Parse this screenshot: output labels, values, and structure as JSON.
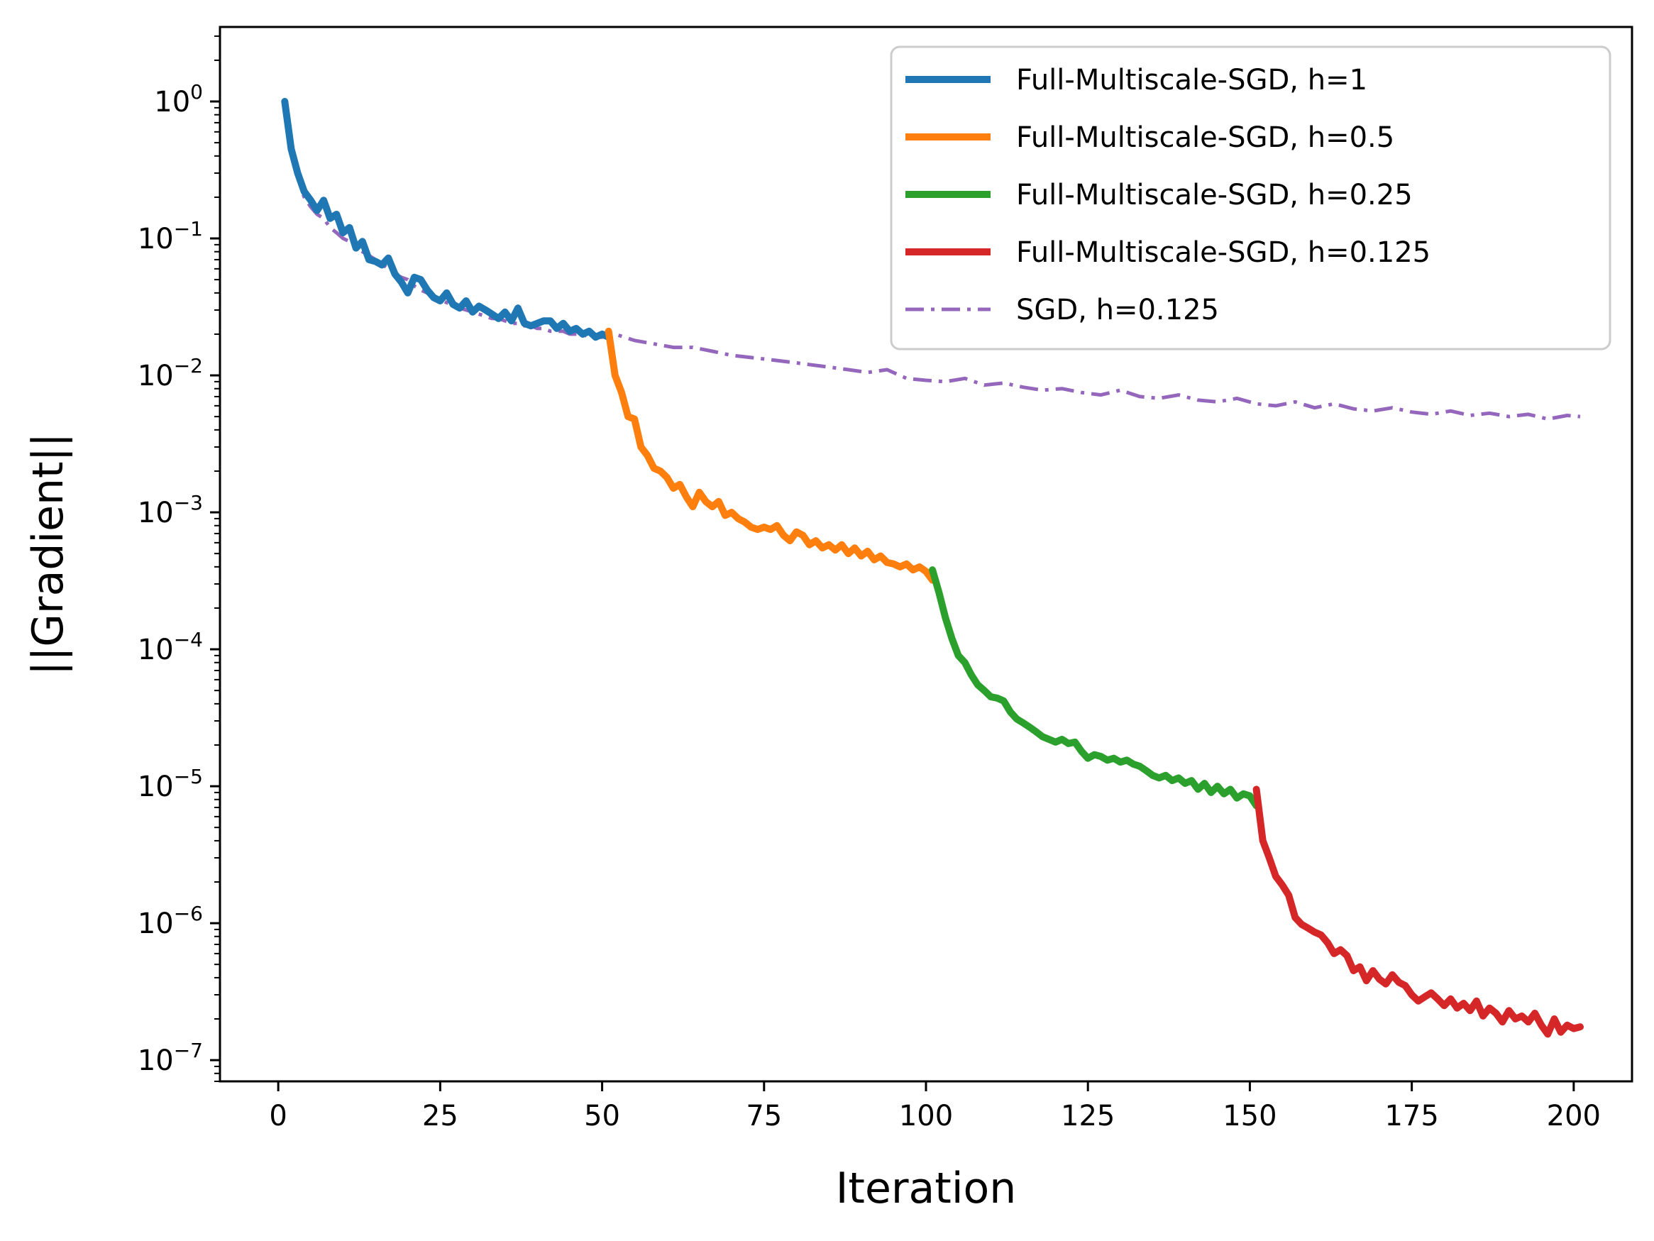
{
  "chart_data": {
    "type": "line",
    "title": "",
    "xlabel": "Iteration",
    "ylabel": "||Gradient||",
    "yscale": "log",
    "xlim": [
      -9,
      209
    ],
    "ylim": [
      7e-08,
      3.5
    ],
    "grid": false,
    "legend_position": "top-right",
    "x_ticks": [
      0,
      25,
      50,
      75,
      100,
      125,
      150,
      175,
      200
    ],
    "x_tick_labels": [
      "0",
      "25",
      "50",
      "75",
      "100",
      "125",
      "150",
      "175",
      "200"
    ],
    "y_ticks": [
      {
        "value": 1,
        "base": "10",
        "exp": "0"
      },
      {
        "value": 0.1,
        "base": "10",
        "exp": "−1"
      },
      {
        "value": 0.01,
        "base": "10",
        "exp": "−2"
      },
      {
        "value": 0.001,
        "base": "10",
        "exp": "−3"
      },
      {
        "value": 0.0001,
        "base": "10",
        "exp": "−4"
      },
      {
        "value": 1e-05,
        "base": "10",
        "exp": "−5"
      },
      {
        "value": 1e-06,
        "base": "10",
        "exp": "−6"
      },
      {
        "value": 1e-07,
        "base": "10",
        "exp": "−7"
      }
    ],
    "series": [
      {
        "name": "Full-Multiscale-SGD, h=1",
        "color": "#1f77b4",
        "style": "solid",
        "x": [
          1,
          2,
          3,
          4,
          5,
          6,
          7,
          8,
          9,
          10,
          11,
          12,
          13,
          14,
          15,
          16,
          17,
          18,
          19,
          20,
          21,
          22,
          23,
          24,
          25,
          26,
          27,
          28,
          29,
          30,
          31,
          32,
          33,
          34,
          35,
          36,
          37,
          38,
          39,
          40,
          41,
          42,
          43,
          44,
          45,
          46,
          47,
          48,
          49,
          50,
          51
        ],
        "y": [
          1.0,
          0.45,
          0.3,
          0.22,
          0.19,
          0.16,
          0.19,
          0.14,
          0.15,
          0.11,
          0.12,
          0.085,
          0.095,
          0.07,
          0.068,
          0.064,
          0.072,
          0.055,
          0.048,
          0.04,
          0.052,
          0.05,
          0.042,
          0.037,
          0.035,
          0.04,
          0.033,
          0.031,
          0.035,
          0.029,
          0.032,
          0.03,
          0.028,
          0.026,
          0.029,
          0.025,
          0.031,
          0.024,
          0.023,
          0.024,
          0.025,
          0.025,
          0.022,
          0.024,
          0.021,
          0.022,
          0.02,
          0.021,
          0.019,
          0.02,
          0.019
        ]
      },
      {
        "name": "Full-Multiscale-SGD, h=0.5",
        "color": "#ff7f0e",
        "style": "solid",
        "x": [
          51,
          52,
          53,
          54,
          55,
          56,
          57,
          58,
          59,
          60,
          61,
          62,
          63,
          64,
          65,
          66,
          67,
          68,
          69,
          70,
          71,
          72,
          73,
          74,
          75,
          76,
          77,
          78,
          79,
          80,
          81,
          82,
          83,
          84,
          85,
          86,
          87,
          88,
          89,
          90,
          91,
          92,
          93,
          94,
          95,
          96,
          97,
          98,
          99,
          100,
          101
        ],
        "y": [
          0.021,
          0.01,
          0.0075,
          0.005,
          0.0048,
          0.003,
          0.0026,
          0.0021,
          0.002,
          0.0018,
          0.0015,
          0.0016,
          0.0013,
          0.0011,
          0.0014,
          0.0012,
          0.0011,
          0.0012,
          0.00095,
          0.001,
          0.0009,
          0.00085,
          0.00078,
          0.00075,
          0.00078,
          0.00075,
          0.0008,
          0.00068,
          0.00062,
          0.00072,
          0.00068,
          0.00058,
          0.00062,
          0.00055,
          0.00058,
          0.00053,
          0.00058,
          0.0005,
          0.00055,
          0.00048,
          0.00052,
          0.00045,
          0.00048,
          0.00043,
          0.00042,
          0.0004,
          0.00042,
          0.00038,
          0.0004,
          0.00037,
          0.00032
        ]
      },
      {
        "name": "Full-Multiscale-SGD, h=0.25",
        "color": "#2ca02c",
        "style": "solid",
        "x": [
          101,
          102,
          103,
          104,
          105,
          106,
          107,
          108,
          109,
          110,
          111,
          112,
          113,
          114,
          115,
          116,
          117,
          118,
          119,
          120,
          121,
          122,
          123,
          124,
          125,
          126,
          127,
          128,
          129,
          130,
          131,
          132,
          133,
          134,
          135,
          136,
          137,
          138,
          139,
          140,
          141,
          142,
          143,
          144,
          145,
          146,
          147,
          148,
          149,
          150,
          151
        ],
        "y": [
          0.00038,
          0.00026,
          0.00017,
          0.00012,
          9e-05,
          8e-05,
          6.5e-05,
          5.5e-05,
          5e-05,
          4.5e-05,
          4.4e-05,
          4.2e-05,
          3.5e-05,
          3.1e-05,
          2.9e-05,
          2.7e-05,
          2.5e-05,
          2.3e-05,
          2.2e-05,
          2.1e-05,
          2.2e-05,
          2.05e-05,
          2.1e-05,
          1.8e-05,
          1.6e-05,
          1.7e-05,
          1.65e-05,
          1.55e-05,
          1.6e-05,
          1.5e-05,
          1.55e-05,
          1.45e-05,
          1.4e-05,
          1.3e-05,
          1.2e-05,
          1.15e-05,
          1.2e-05,
          1.1e-05,
          1.15e-05,
          1.05e-05,
          1.1e-05,
          9.5e-06,
          1.05e-05,
          9e-06,
          1e-05,
          8.8e-06,
          9.5e-06,
          8.2e-06,
          8.8e-06,
          8.5e-06,
          7.2e-06
        ]
      },
      {
        "name": "Full-Multiscale-SGD, h=0.125",
        "color": "#d62728",
        "style": "solid",
        "x": [
          151,
          152,
          153,
          154,
          155,
          156,
          157,
          158,
          159,
          160,
          161,
          162,
          163,
          164,
          165,
          166,
          167,
          168,
          169,
          170,
          171,
          172,
          173,
          174,
          175,
          176,
          177,
          178,
          179,
          180,
          181,
          182,
          183,
          184,
          185,
          186,
          187,
          188,
          189,
          190,
          191,
          192,
          193,
          194,
          195,
          196,
          197,
          198,
          199,
          200,
          201
        ],
        "y": [
          9.5e-06,
          4e-06,
          3e-06,
          2.2e-06,
          1.9e-06,
          1.6e-06,
          1.1e-06,
          9.8e-07,
          9.2e-07,
          8.6e-07,
          8.2e-07,
          7.2e-07,
          6e-07,
          6.4e-07,
          5.8e-07,
          4.5e-07,
          4.8e-07,
          3.8e-07,
          4.5e-07,
          3.9e-07,
          3.6e-07,
          4.2e-07,
          3.7e-07,
          3.5e-07,
          3e-07,
          2.7e-07,
          2.9e-07,
          3.1e-07,
          2.8e-07,
          2.5e-07,
          2.8e-07,
          2.4e-07,
          2.6e-07,
          2.3e-07,
          2.7e-07,
          2.1e-07,
          2.4e-07,
          2.2e-07,
          1.9e-07,
          2.3e-07,
          2e-07,
          2.1e-07,
          1.9e-07,
          2.2e-07,
          1.8e-07,
          1.55e-07,
          2e-07,
          1.6e-07,
          1.8e-07,
          1.7e-07,
          1.75e-07
        ]
      },
      {
        "name": "SGD, h=0.125",
        "color": "#9467bd",
        "style": "dashdot",
        "x": [
          1,
          2,
          3,
          4,
          5,
          6,
          7,
          8,
          9,
          10,
          11,
          12,
          13,
          14,
          15,
          16,
          17,
          18,
          19,
          20,
          21,
          22,
          23,
          24,
          25,
          26,
          27,
          28,
          29,
          30,
          31,
          32,
          33,
          34,
          35,
          36,
          37,
          38,
          39,
          40,
          41,
          42,
          43,
          44,
          45,
          46,
          47,
          48,
          49,
          50,
          52,
          55,
          58,
          61,
          64,
          67,
          70,
          73,
          76,
          79,
          82,
          85,
          88,
          91,
          94,
          97,
          100,
          103,
          106,
          109,
          112,
          115,
          118,
          121,
          124,
          127,
          130,
          133,
          136,
          139,
          142,
          145,
          148,
          151,
          154,
          157,
          160,
          163,
          166,
          169,
          172,
          175,
          178,
          181,
          184,
          187,
          190,
          193,
          196,
          199,
          201
        ],
        "y": [
          1.05,
          0.5,
          0.28,
          0.2,
          0.17,
          0.15,
          0.14,
          0.12,
          0.11,
          0.1,
          0.095,
          0.085,
          0.08,
          0.075,
          0.07,
          0.065,
          0.06,
          0.055,
          0.052,
          0.05,
          0.045,
          0.042,
          0.04,
          0.038,
          0.036,
          0.034,
          0.033,
          0.031,
          0.03,
          0.029,
          0.028,
          0.027,
          0.026,
          0.026,
          0.025,
          0.024,
          0.024,
          0.023,
          0.023,
          0.022,
          0.022,
          0.021,
          0.021,
          0.021,
          0.02,
          0.02,
          0.02,
          0.019,
          0.019,
          0.019,
          0.02,
          0.018,
          0.017,
          0.016,
          0.016,
          0.015,
          0.014,
          0.0135,
          0.013,
          0.0125,
          0.012,
          0.0115,
          0.011,
          0.0105,
          0.011,
          0.0095,
          0.0092,
          0.009,
          0.0095,
          0.0085,
          0.0088,
          0.0082,
          0.0078,
          0.008,
          0.0075,
          0.0072,
          0.0078,
          0.007,
          0.0068,
          0.0072,
          0.0066,
          0.0064,
          0.0068,
          0.0062,
          0.006,
          0.0064,
          0.0058,
          0.0062,
          0.0057,
          0.0055,
          0.0058,
          0.0054,
          0.0052,
          0.0055,
          0.0051,
          0.0053,
          0.005,
          0.0052,
          0.0048,
          0.0051,
          0.005
        ]
      }
    ]
  }
}
